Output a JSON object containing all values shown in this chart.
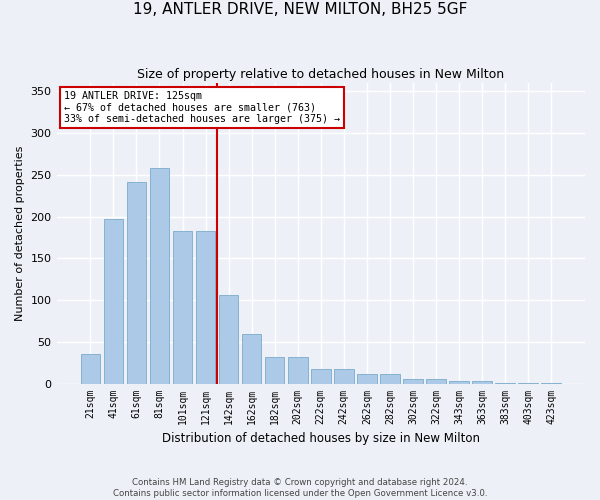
{
  "title": "19, ANTLER DRIVE, NEW MILTON, BH25 5GF",
  "subtitle": "Size of property relative to detached houses in New Milton",
  "xlabel": "Distribution of detached houses by size in New Milton",
  "ylabel": "Number of detached properties",
  "categories": [
    "21sqm",
    "41sqm",
    "61sqm",
    "81sqm",
    "101sqm",
    "121sqm",
    "142sqm",
    "162sqm",
    "182sqm",
    "202sqm",
    "222sqm",
    "242sqm",
    "262sqm",
    "282sqm",
    "302sqm",
    "322sqm",
    "343sqm",
    "363sqm",
    "383sqm",
    "403sqm",
    "423sqm"
  ],
  "values": [
    35,
    197,
    242,
    258,
    183,
    183,
    106,
    59,
    32,
    32,
    18,
    18,
    11,
    11,
    5,
    5,
    3,
    3,
    1,
    1,
    1
  ],
  "bar_color": "#adc9e8",
  "bar_edge_color": "#7aaaca",
  "vline_color": "#cc0000",
  "vline_x": 5.5,
  "annotation_line1": "19 ANTLER DRIVE: 125sqm",
  "annotation_line2": "← 67% of detached houses are smaller (763)",
  "annotation_line3": "33% of semi-detached houses are larger (375) →",
  "annotation_box_color": "#cc0000",
  "ylim": [
    0,
    360
  ],
  "yticks": [
    0,
    50,
    100,
    150,
    200,
    250,
    300,
    350
  ],
  "background_color": "#edf1f7",
  "grid_color": "#ffffff",
  "title_fontsize": 11,
  "subtitle_fontsize": 9,
  "footer1": "Contains HM Land Registry data © Crown copyright and database right 2024.",
  "footer2": "Contains public sector information licensed under the Open Government Licence v3.0."
}
